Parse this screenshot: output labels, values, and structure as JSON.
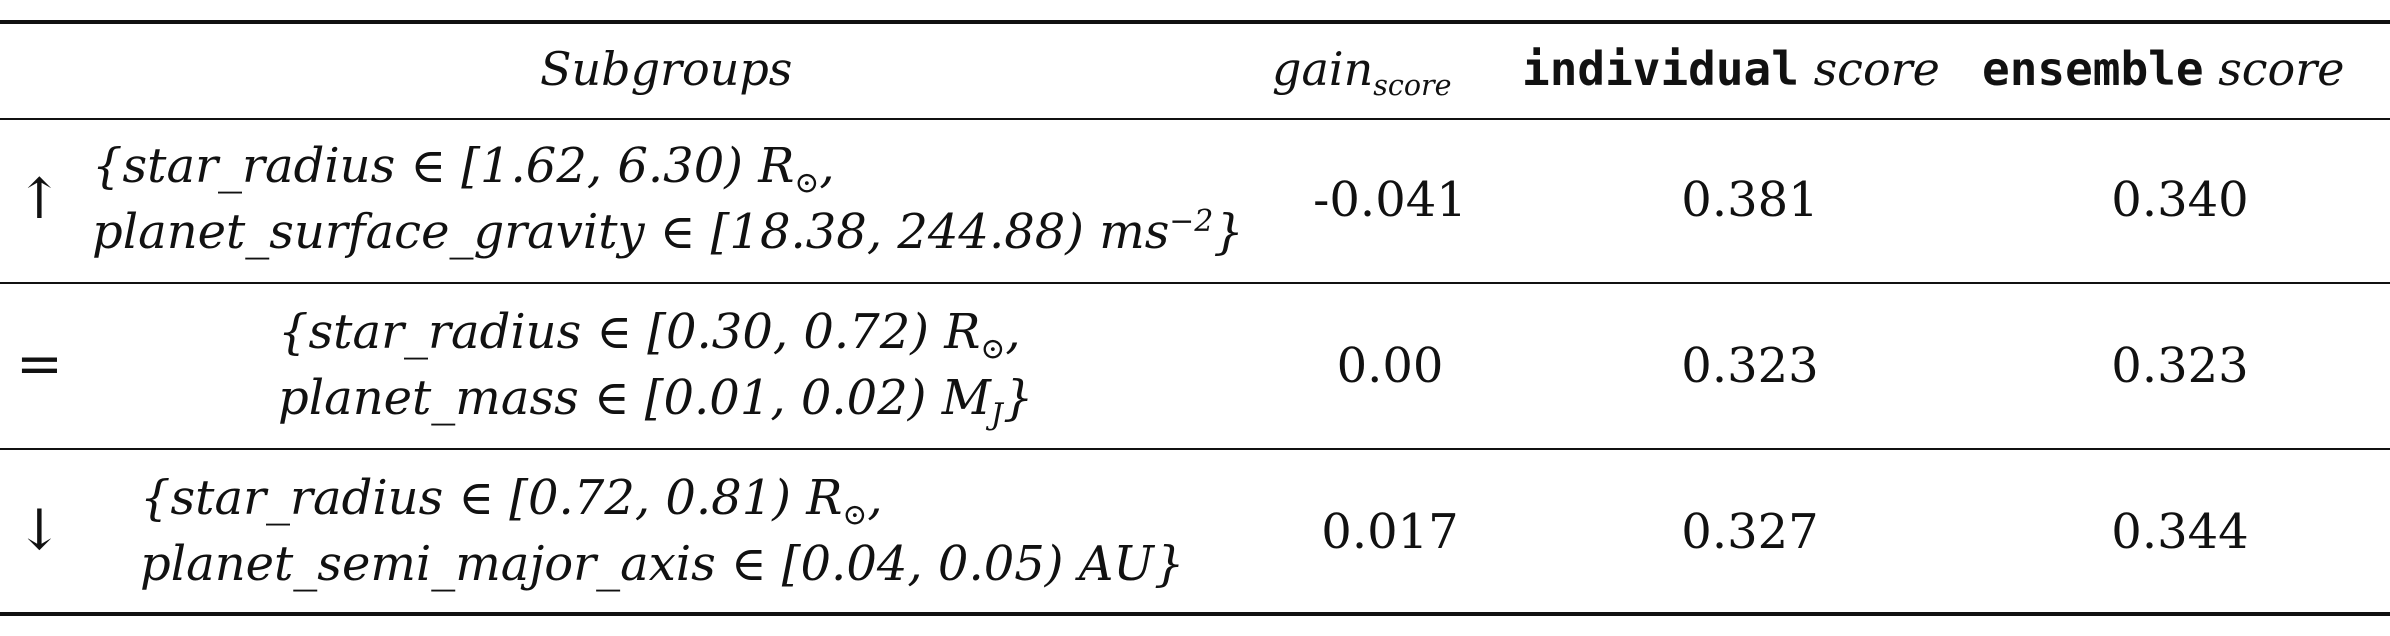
{
  "header": {
    "subgroups": "Subgroups",
    "gain_main": "gain",
    "gain_sub": "score",
    "individual_mono": "individual",
    "individual_it": "score",
    "ensemble_mono": "ensemble",
    "ensemble_it": "score"
  },
  "rows": [
    {
      "arrow": "↑",
      "line1": "{star_radius ∈ [1.62, 6.30) R",
      "line1_sub": "⊙",
      "line1_end": ",",
      "line2": "planet_surface_gravity ∈ [18.38, 244.88) ms",
      "line2_sup": "−2",
      "line2_end": "}",
      "gain": "-0.041",
      "individual": "0.381",
      "ensemble": "0.340"
    },
    {
      "arrow": "=",
      "line1": "{star_radius ∈ [0.30, 0.72) R",
      "line1_sub": "⊙",
      "line1_end": ",",
      "line2": "planet_mass ∈ [0.01, 0.02) M",
      "line2_sub": "J",
      "line2_end": "}",
      "gain": "0.00",
      "individual": "0.323",
      "ensemble": "0.323"
    },
    {
      "arrow": "↓",
      "line1": "{star_radius ∈ [0.72, 0.81) R",
      "line1_sub": "⊙",
      "line1_end": ",",
      "line2": "planet_semi_major_axis ∈ [0.04, 0.05) AU}",
      "gain": "0.017",
      "individual": "0.327",
      "ensemble": "0.344"
    }
  ]
}
